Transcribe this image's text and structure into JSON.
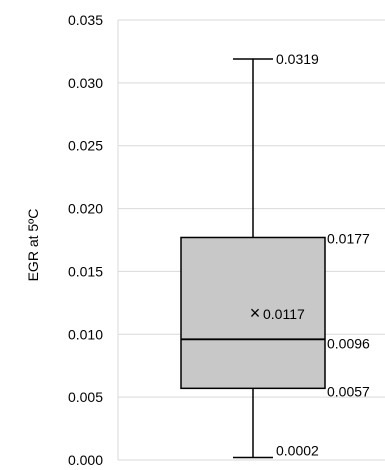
{
  "chart_data": {
    "type": "box",
    "ylabel": "EGR at 5ºC",
    "ylim": [
      0,
      0.035
    ],
    "y_ticks": [
      "0.000",
      "0.005",
      "0.010",
      "0.015",
      "0.020",
      "0.025",
      "0.030",
      "0.035"
    ],
    "grid": true,
    "box": {
      "min": 0.0002,
      "q1": 0.0057,
      "median": 0.0096,
      "mean": 0.0117,
      "q3": 0.0177,
      "max": 0.0319
    },
    "data_labels": {
      "max": "0.0319",
      "q3": "0.0177",
      "mean": "0.0117",
      "median": "0.0096",
      "q1": "0.0057",
      "min": "0.0002"
    },
    "mean_marker": "×",
    "box_fill": "#c8c8c8",
    "line_color": "#000000",
    "grid_color": "#d9d9d9"
  }
}
